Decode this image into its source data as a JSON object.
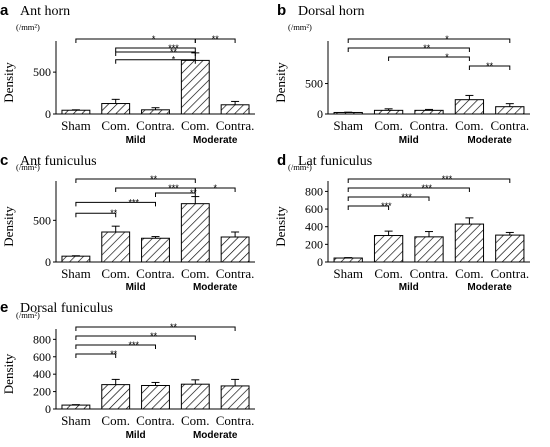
{
  "categories": [
    "Sham",
    "Com.",
    "Contra.",
    "Com.",
    "Contra."
  ],
  "groups": [
    "Mild",
    "Moderate"
  ],
  "unit": "(/mm²)",
  "ylabel": "Density",
  "chart_data": [
    {
      "type": "bar",
      "panel": "a",
      "title": "Ant horn",
      "categories": [
        "Sham",
        "Com.",
        "Contra.",
        "Com.",
        "Contra."
      ],
      "values": [
        45,
        125,
        50,
        640,
        110
      ],
      "errors": [
        5,
        50,
        25,
        90,
        40
      ],
      "ylim": [
        0,
        800
      ],
      "yticks": [
        0,
        500
      ],
      "brackets": [
        {
          "from": 0,
          "to": 3,
          "stars": "*",
          "level": 0
        },
        {
          "from": 1,
          "to": 3,
          "stars": "***",
          "level": 1
        },
        {
          "from": 1,
          "to": 3,
          "stars": "**",
          "level": 1.45
        },
        {
          "from": 1,
          "to": 3,
          "stars": "*",
          "level": 2.3
        },
        {
          "from": 3,
          "to": 4,
          "stars": "**",
          "level": 0
        }
      ]
    },
    {
      "type": "bar",
      "panel": "b",
      "title": "Dorsal horn",
      "categories": [
        "Sham",
        "Com.",
        "Contra.",
        "Com.",
        "Contra."
      ],
      "values": [
        25,
        60,
        60,
        235,
        120
      ],
      "errors": [
        5,
        25,
        15,
        70,
        50
      ],
      "ylim": [
        0,
        1100
      ],
      "yticks": [
        0,
        500
      ],
      "brackets": [
        {
          "from": 0,
          "to": 4,
          "stars": "*",
          "level": 0
        },
        {
          "from": 0,
          "to": 3,
          "stars": "**",
          "level": 1
        },
        {
          "from": 1,
          "to": 3,
          "stars": "*",
          "level": 2
        },
        {
          "from": 3,
          "to": 4,
          "stars": "**",
          "level": 3
        }
      ]
    },
    {
      "type": "bar",
      "panel": "c",
      "title": "Ant funiculus",
      "categories": [
        "Sham",
        "Com.",
        "Contra.",
        "Com.",
        "Contra."
      ],
      "values": [
        70,
        360,
        285,
        700,
        300
      ],
      "errors": [
        5,
        70,
        20,
        85,
        60
      ],
      "ylim": [
        0,
        900
      ],
      "yticks": [
        0,
        500
      ],
      "brackets": [
        {
          "from": 0,
          "to": 3,
          "stars": "**",
          "level": 0
        },
        {
          "from": 1,
          "to": 3,
          "stars": "***",
          "level": 1
        },
        {
          "from": 2,
          "to": 3,
          "stars": "**",
          "level": 1.55
        },
        {
          "from": 3,
          "to": 4,
          "stars": "*",
          "level": 1
        },
        {
          "from": 0,
          "to": 2,
          "stars": "***",
          "level": 2.6
        },
        {
          "from": 0,
          "to": 1,
          "stars": "**",
          "level": 3.8
        }
      ]
    },
    {
      "type": "bar",
      "panel": "d",
      "title": "Lat funiculus",
      "categories": [
        "Sham",
        "Com.",
        "Contra.",
        "Com.",
        "Contra."
      ],
      "values": [
        45,
        300,
        285,
        430,
        305
      ],
      "errors": [
        5,
        50,
        60,
        70,
        30
      ],
      "ylim": [
        0,
        850
      ],
      "yticks": [
        0,
        200,
        400,
        600,
        800
      ],
      "brackets": [
        {
          "from": 0,
          "to": 4,
          "stars": "***",
          "level": 0
        },
        {
          "from": 0,
          "to": 3,
          "stars": "***",
          "level": 1
        },
        {
          "from": 0,
          "to": 2,
          "stars": "***",
          "level": 2
        },
        {
          "from": 0,
          "to": 1,
          "stars": "***",
          "level": 3
        }
      ]
    },
    {
      "type": "bar",
      "panel": "e",
      "title": "Dorsal funiculus",
      "categories": [
        "Sham",
        "Com.",
        "Contra.",
        "Com.",
        "Contra."
      ],
      "values": [
        45,
        280,
        270,
        285,
        265
      ],
      "errors": [
        5,
        60,
        35,
        50,
        75
      ],
      "ylim": [
        0,
        850
      ],
      "yticks": [
        0,
        200,
        400,
        600,
        800
      ],
      "brackets": [
        {
          "from": 0,
          "to": 4,
          "stars": "**",
          "level": 0
        },
        {
          "from": 0,
          "to": 3,
          "stars": "**",
          "level": 1
        },
        {
          "from": 0,
          "to": 2,
          "stars": "***",
          "level": 2
        },
        {
          "from": 0,
          "to": 1,
          "stars": "**",
          "level": 3
        }
      ]
    }
  ]
}
